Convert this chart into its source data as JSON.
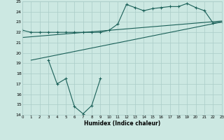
{
  "xlabel": "Humidex (Indice chaleur)",
  "bg_color": "#cce8e2",
  "grid_color": "#aaccc8",
  "line_color": "#1a6058",
  "xlim": [
    0,
    23
  ],
  "ylim": [
    14,
    25
  ],
  "xticks": [
    0,
    1,
    2,
    3,
    4,
    5,
    6,
    7,
    8,
    9,
    10,
    11,
    12,
    13,
    14,
    15,
    16,
    17,
    18,
    19,
    20,
    21,
    22,
    23
  ],
  "yticks": [
    14,
    15,
    16,
    17,
    18,
    19,
    20,
    21,
    22,
    23,
    24,
    25
  ],
  "curve1_x": [
    0,
    1,
    2,
    3,
    4,
    5,
    6,
    7,
    8,
    9,
    10,
    11,
    12,
    13,
    14,
    15,
    16,
    17,
    18,
    19,
    20,
    21,
    22,
    23
  ],
  "curve1_y": [
    22.2,
    22.0,
    22.0,
    22.0,
    22.0,
    22.0,
    22.0,
    22.0,
    22.0,
    22.0,
    22.2,
    22.8,
    24.7,
    24.4,
    24.1,
    24.3,
    24.4,
    24.5,
    24.5,
    24.8,
    24.4,
    24.1,
    22.9,
    23.0
  ],
  "line1_x": [
    0,
    23
  ],
  "line1_y": [
    21.5,
    23.1
  ],
  "line2_x": [
    1,
    23
  ],
  "line2_y": [
    19.3,
    23.0
  ],
  "curve2_x": [
    3,
    4,
    5,
    6,
    7,
    8,
    9
  ],
  "curve2_y": [
    19.3,
    17.0,
    17.5,
    14.8,
    14.1,
    14.9,
    17.5
  ]
}
